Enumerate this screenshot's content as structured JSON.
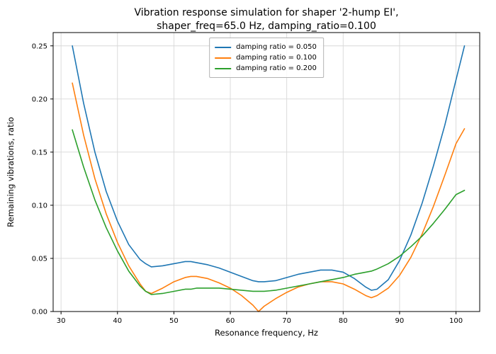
{
  "chart_data": {
    "type": "line",
    "title_line1": "Vibration response simulation for shaper '2-hump EI',",
    "title_line2": "shaper_freq=65.0 Hz, damping_ratio=0.100",
    "xlabel": "Resonance frequency, Hz",
    "ylabel": "Remaining vibrations, ratio",
    "xlim": [
      28.6,
      104.2
    ],
    "ylim": [
      0,
      0.2625
    ],
    "xticks": [
      30,
      40,
      50,
      60,
      70,
      80,
      90,
      100
    ],
    "yticks": [
      0.0,
      0.05,
      0.1,
      0.15,
      0.2,
      0.25
    ],
    "grid": true,
    "legend_position": "upper center",
    "x": [
      32,
      34,
      36,
      38,
      40,
      42,
      44,
      45,
      46,
      48,
      50,
      52,
      53,
      54,
      56,
      58,
      60,
      62,
      64,
      65,
      66,
      68,
      70,
      72,
      74,
      76,
      78,
      80,
      82,
      84,
      85,
      86,
      88,
      90,
      92,
      94,
      96,
      98,
      100,
      101.5
    ],
    "series": [
      {
        "name": "damping ratio = 0.050",
        "color": "#1f77b4",
        "values": [
          0.25,
          0.196,
          0.15,
          0.113,
          0.085,
          0.063,
          0.049,
          0.045,
          0.042,
          0.043,
          0.045,
          0.047,
          0.047,
          0.046,
          0.044,
          0.041,
          0.037,
          0.033,
          0.029,
          0.028,
          0.028,
          0.029,
          0.032,
          0.035,
          0.037,
          0.039,
          0.039,
          0.037,
          0.031,
          0.023,
          0.02,
          0.021,
          0.03,
          0.048,
          0.072,
          0.102,
          0.137,
          0.175,
          0.218,
          0.25
        ]
      },
      {
        "name": "damping ratio = 0.100",
        "color": "#ff7f0e",
        "values": [
          0.215,
          0.166,
          0.125,
          0.092,
          0.065,
          0.043,
          0.026,
          0.019,
          0.017,
          0.022,
          0.028,
          0.032,
          0.033,
          0.033,
          0.031,
          0.027,
          0.022,
          0.015,
          0.006,
          0.0,
          0.005,
          0.012,
          0.018,
          0.023,
          0.026,
          0.028,
          0.028,
          0.026,
          0.021,
          0.015,
          0.013,
          0.015,
          0.022,
          0.034,
          0.051,
          0.073,
          0.099,
          0.128,
          0.158,
          0.172
        ]
      },
      {
        "name": "damping ratio = 0.200",
        "color": "#2ca02c",
        "values": [
          0.171,
          0.136,
          0.105,
          0.079,
          0.057,
          0.038,
          0.024,
          0.019,
          0.016,
          0.017,
          0.019,
          0.021,
          0.021,
          0.022,
          0.022,
          0.022,
          0.021,
          0.02,
          0.019,
          0.019,
          0.019,
          0.02,
          0.022,
          0.024,
          0.026,
          0.028,
          0.03,
          0.032,
          0.035,
          0.037,
          0.038,
          0.04,
          0.045,
          0.052,
          0.061,
          0.071,
          0.083,
          0.096,
          0.11,
          0.114
        ]
      }
    ]
  }
}
